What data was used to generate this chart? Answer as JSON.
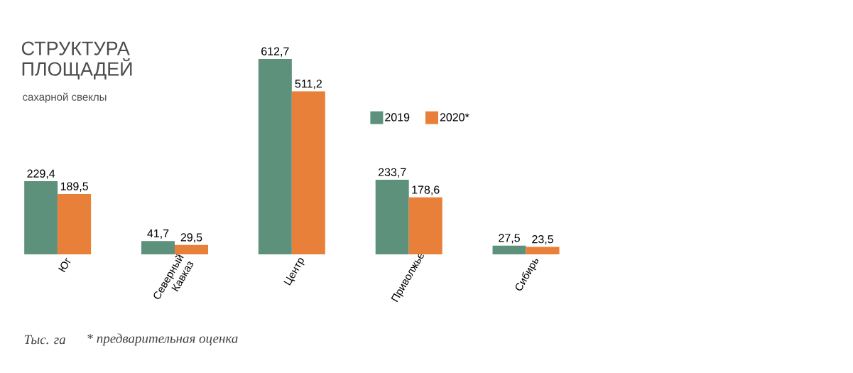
{
  "chart_data": {
    "type": "bar",
    "title": "СТРУКТУРА ПЛОЩАДЕЙ",
    "subtitle": "сахарной свеклы",
    "categories": [
      "Юг",
      "Северный Кавказ",
      "Центр",
      "Приволжье",
      "Сибирь"
    ],
    "series": [
      {
        "name": "2019",
        "color": "#5e917c",
        "values": [
          229.4,
          41.7,
          612.7,
          233.7,
          27.5
        ],
        "value_labels": [
          "229,4",
          "41,7",
          "612,7",
          "233,7",
          "27,5"
        ]
      },
      {
        "name": "2020*",
        "color": "#e9803a",
        "values": [
          189.5,
          29.5,
          511.2,
          178.6,
          23.5
        ],
        "value_labels": [
          "189,5",
          "29,5",
          "511,2",
          "178,6",
          "23,5"
        ]
      }
    ],
    "legend": "top right",
    "annotations": [
      "Тыс. га",
      "* предварительная оценка"
    ]
  }
}
